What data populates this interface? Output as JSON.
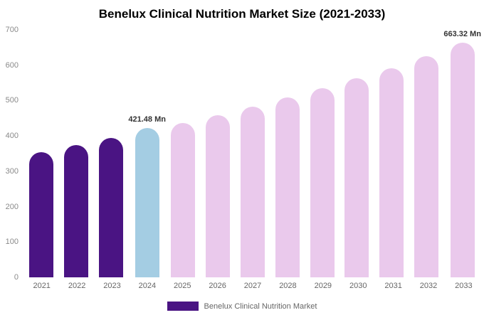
{
  "chart_data": {
    "type": "bar",
    "title": "Benelux Clinical Nutrition Market Size (2021-2033)",
    "categories": [
      "2021",
      "2022",
      "2023",
      "2024",
      "2025",
      "2026",
      "2027",
      "2028",
      "2029",
      "2030",
      "2031",
      "2032",
      "2033"
    ],
    "values": [
      355,
      375,
      395,
      421.48,
      437,
      458,
      483,
      508,
      535,
      563,
      592,
      625,
      663.32
    ],
    "bar_colors": [
      "#4a1483",
      "#4a1483",
      "#4a1483",
      "#a4cde3",
      "#eac9ec",
      "#eac9ec",
      "#eac9ec",
      "#eac9ec",
      "#eac9ec",
      "#eac9ec",
      "#eac9ec",
      "#eac9ec",
      "#eac9ec"
    ],
    "annotations": [
      {
        "index": 3,
        "text": "421.48 Mn"
      },
      {
        "index": 12,
        "text": "663.32 Mn"
      }
    ],
    "xlabel": "",
    "ylabel": "",
    "ylim": [
      0,
      700
    ],
    "yticks": [
      0,
      100,
      200,
      300,
      400,
      500,
      600,
      700
    ],
    "grid": false,
    "legend_position": "bottom"
  },
  "legend": {
    "label": "Benelux Clinical Nutrition Market",
    "swatch_color": "#4a1483"
  },
  "palette": {
    "historical": "#4a1483",
    "current_year": "#a4cde3",
    "forecast": "#eac9ec"
  }
}
